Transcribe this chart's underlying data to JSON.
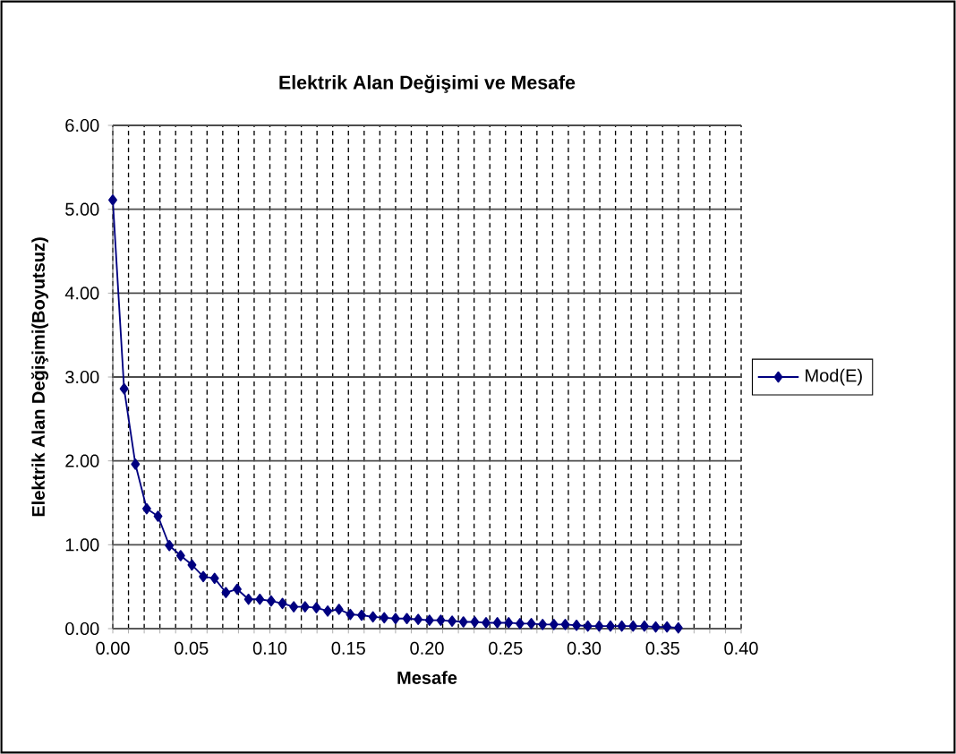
{
  "chart_data": {
    "type": "line",
    "title": "Elektrik Alan Değişimi ve Mesafe",
    "xlabel": "Mesafe",
    "ylabel": "Elektrik Alan Değişimi(Boyutsuz)",
    "x": [
      0,
      0.0072,
      0.0144,
      0.0216,
      0.0288,
      0.036,
      0.0432,
      0.0504,
      0.0576,
      0.0648,
      0.072,
      0.0792,
      0.0864,
      0.0936,
      0.1008,
      0.108,
      0.1152,
      0.1224,
      0.1296,
      0.1368,
      0.144,
      0.1512,
      0.1584,
      0.1656,
      0.1728,
      0.18,
      0.1872,
      0.1944,
      0.2016,
      0.2088,
      0.216,
      0.2232,
      0.2304,
      0.2376,
      0.2448,
      0.252,
      0.2592,
      0.2664,
      0.2736,
      0.2808,
      0.288,
      0.2952,
      0.3024,
      0.3096,
      0.3168,
      0.324,
      0.3312,
      0.3384,
      0.3456,
      0.3528,
      0.36
    ],
    "series": [
      {
        "name": "Mod(E)",
        "color": "#000080",
        "values": [
          5.11,
          2.86,
          1.96,
          1.43,
          1.34,
          0.99,
          0.87,
          0.76,
          0.62,
          0.6,
          0.43,
          0.47,
          0.35,
          0.35,
          0.33,
          0.3,
          0.26,
          0.26,
          0.25,
          0.21,
          0.23,
          0.17,
          0.16,
          0.14,
          0.13,
          0.12,
          0.12,
          0.11,
          0.1,
          0.1,
          0.09,
          0.08,
          0.08,
          0.07,
          0.07,
          0.07,
          0.06,
          0.06,
          0.05,
          0.05,
          0.05,
          0.04,
          0.03,
          0.03,
          0.03,
          0.03,
          0.03,
          0.03,
          0.02,
          0.02,
          0.01
        ]
      }
    ],
    "xlim": [
      0,
      0.4
    ],
    "ylim": [
      0,
      6
    ],
    "xticks": [
      {
        "value": 0,
        "label": "0.00"
      },
      {
        "value": 0.01,
        "label": null
      },
      {
        "value": 0.02,
        "label": null
      },
      {
        "value": 0.03,
        "label": null
      },
      {
        "value": 0.04,
        "label": null
      },
      {
        "value": 0.05,
        "label": "0.05"
      },
      {
        "value": 0.06,
        "label": null
      },
      {
        "value": 0.07,
        "label": null
      },
      {
        "value": 0.08,
        "label": null
      },
      {
        "value": 0.09,
        "label": null
      },
      {
        "value": 0.1,
        "label": "0.10"
      },
      {
        "value": 0.11,
        "label": null
      },
      {
        "value": 0.12,
        "label": null
      },
      {
        "value": 0.13,
        "label": null
      },
      {
        "value": 0.14,
        "label": null
      },
      {
        "value": 0.15,
        "label": "0.15"
      },
      {
        "value": 0.16,
        "label": null
      },
      {
        "value": 0.17,
        "label": null
      },
      {
        "value": 0.18,
        "label": null
      },
      {
        "value": 0.19,
        "label": null
      },
      {
        "value": 0.2,
        "label": "0.20"
      },
      {
        "value": 0.21,
        "label": null
      },
      {
        "value": 0.22,
        "label": null
      },
      {
        "value": 0.23,
        "label": null
      },
      {
        "value": 0.24,
        "label": null
      },
      {
        "value": 0.25,
        "label": "0.25"
      },
      {
        "value": 0.26,
        "label": null
      },
      {
        "value": 0.27,
        "label": null
      },
      {
        "value": 0.28,
        "label": null
      },
      {
        "value": 0.29,
        "label": null
      },
      {
        "value": 0.3,
        "label": "0.30"
      },
      {
        "value": 0.31,
        "label": null
      },
      {
        "value": 0.32,
        "label": null
      },
      {
        "value": 0.33,
        "label": null
      },
      {
        "value": 0.34,
        "label": null
      },
      {
        "value": 0.35,
        "label": "0.35"
      },
      {
        "value": 0.36,
        "label": null
      },
      {
        "value": 0.37,
        "label": null
      },
      {
        "value": 0.38,
        "label": null
      },
      {
        "value": 0.39,
        "label": null
      },
      {
        "value": 0.4,
        "label": "0.40"
      }
    ],
    "yticks": [
      {
        "value": 0,
        "label": "0.00"
      },
      {
        "value": 1,
        "label": "1.00"
      },
      {
        "value": 2,
        "label": "2.00"
      },
      {
        "value": 3,
        "label": "3.00"
      },
      {
        "value": 4,
        "label": "4.00"
      },
      {
        "value": 5,
        "label": "5.00"
      },
      {
        "value": 6,
        "label": "6.00"
      }
    ],
    "grid": true,
    "legend": "right",
    "marker": "diamond",
    "line_style": "solid"
  }
}
